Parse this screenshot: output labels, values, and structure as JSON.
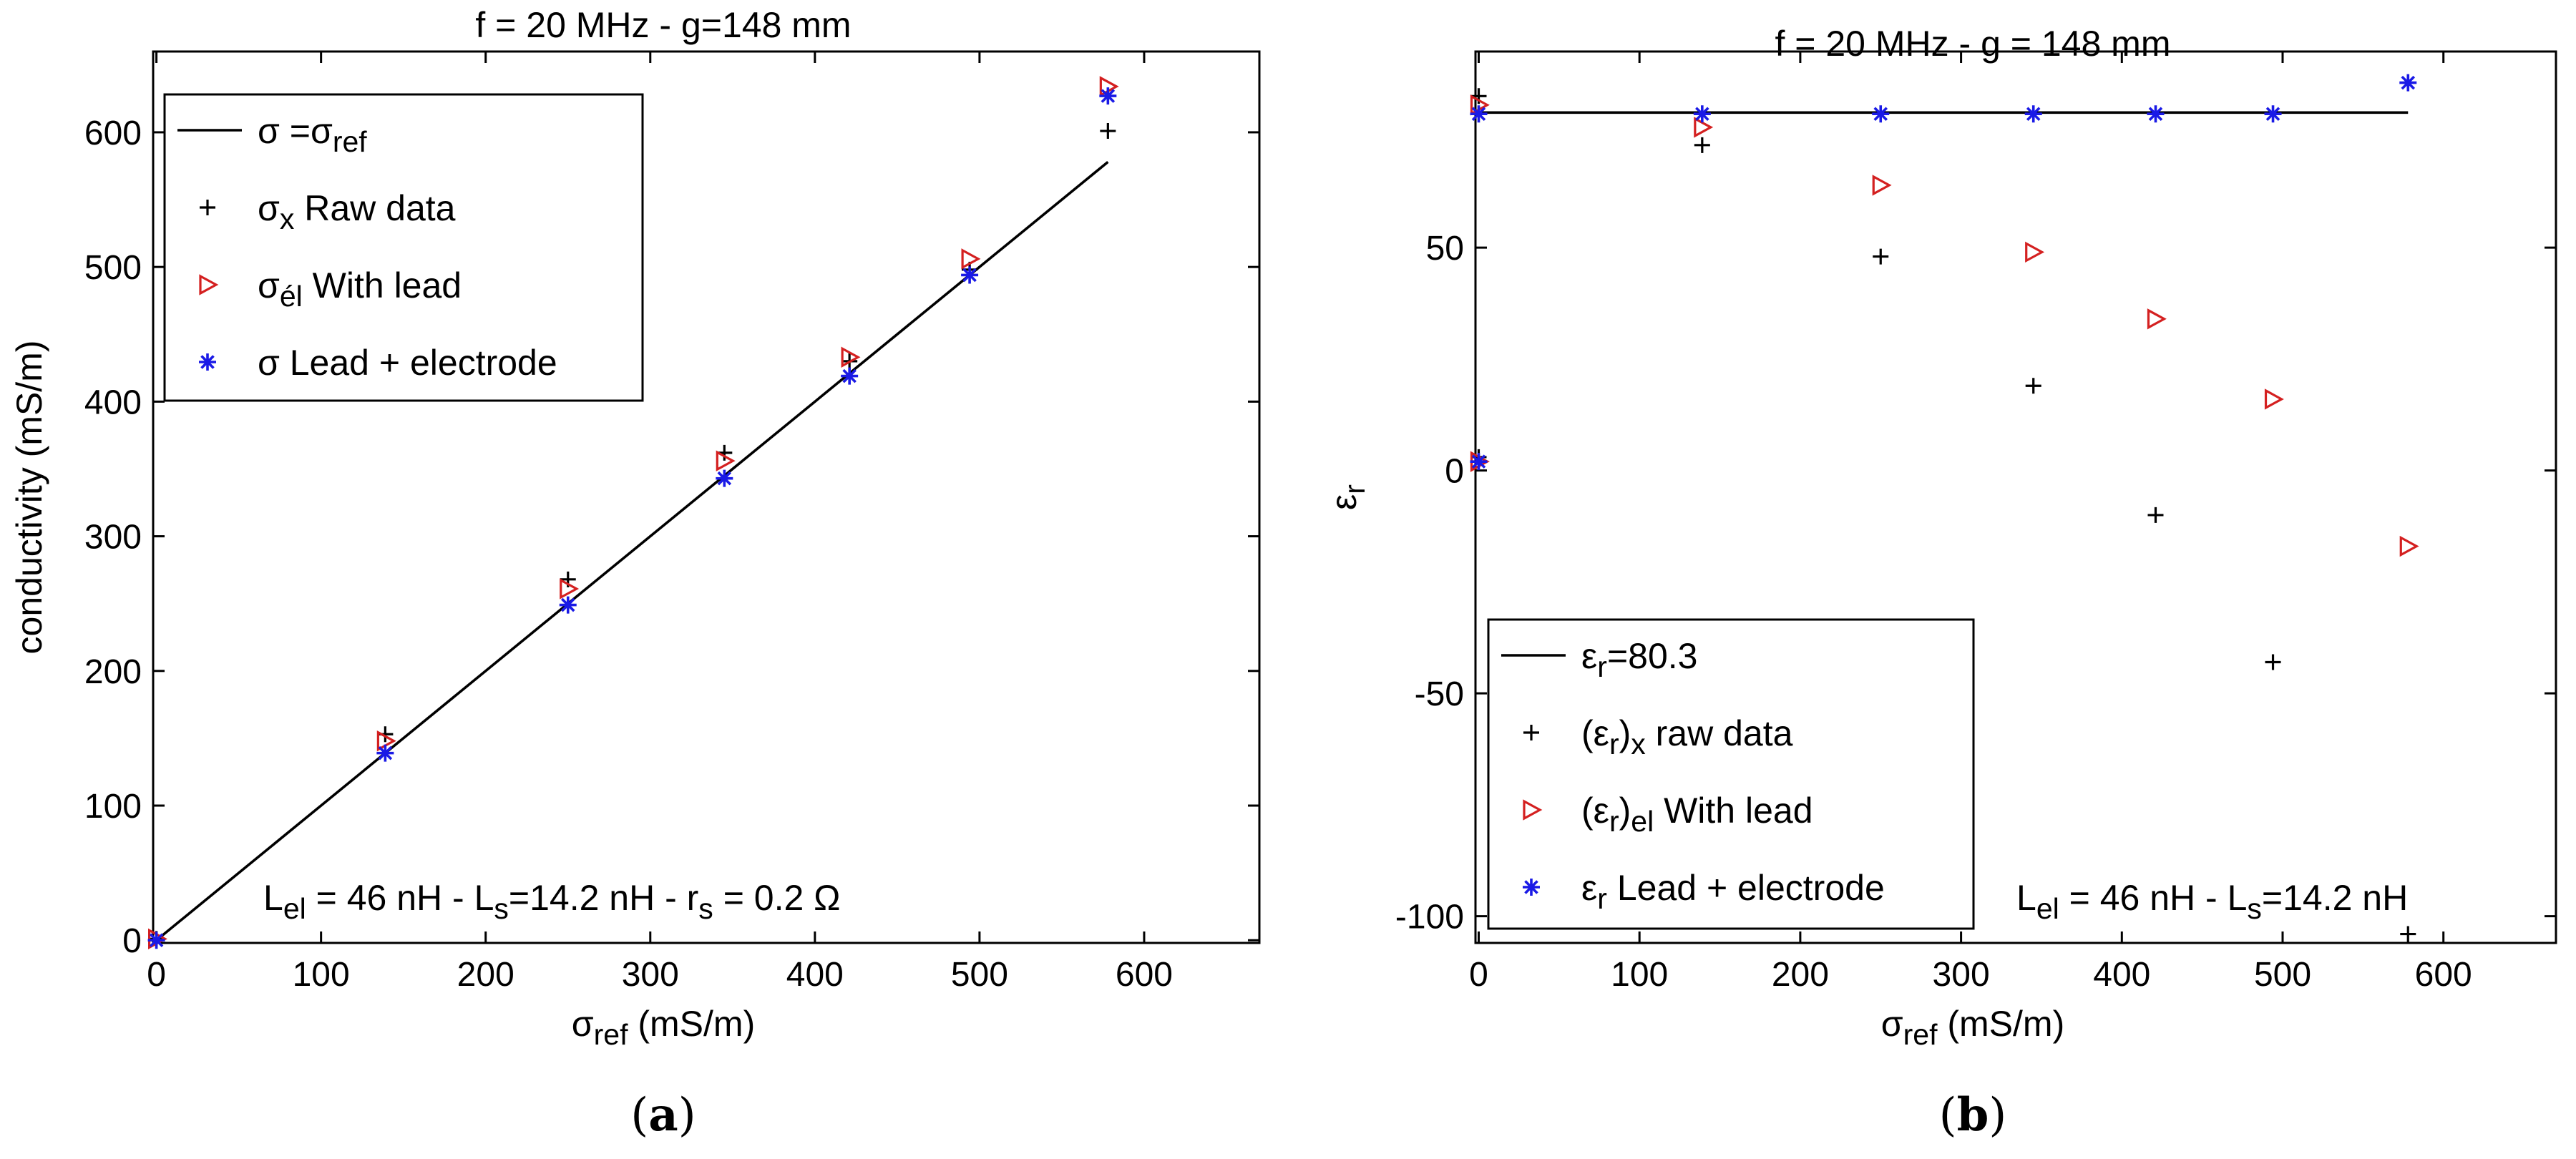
{
  "chart_data": [
    {
      "id": "a",
      "type": "scatter",
      "title": "f = 20 MHz - g=148 mm",
      "xlabel": {
        "base": "σ",
        "sub": "ref",
        "rest": " (mS/m)"
      },
      "ylabel": "conductivity (mS/m)",
      "xlim": [
        -2,
        670
      ],
      "ylim": [
        -2,
        660
      ],
      "xticks": [
        0,
        100,
        200,
        300,
        400,
        500,
        600
      ],
      "yticks": [
        0,
        100,
        200,
        300,
        400,
        500,
        600
      ],
      "legend_position": "top-left",
      "caption": {
        "open": "(",
        "letter": "a",
        "close": ")"
      },
      "annotation": {
        "parts": [
          {
            "t": "L",
            "s": ""
          },
          {
            "t": "",
            "s": "el"
          },
          {
            "t": " = 46 nH - L",
            "s": ""
          },
          {
            "t": "",
            "s": "s"
          },
          {
            "t": "=14.2 nH - r",
            "s": ""
          },
          {
            "t": "",
            "s": "s"
          },
          {
            "t": " = 0.2 Ω",
            "s": ""
          }
        ]
      },
      "series": [
        {
          "name": "ref_line",
          "marker": "line",
          "color": "#000000",
          "legend": {
            "base": "σ =σ",
            "sub": "ref",
            "rest": ""
          },
          "x": [
            0,
            578
          ],
          "y": [
            0,
            578
          ]
        },
        {
          "name": "raw",
          "marker": "plus",
          "color": "#000000",
          "legend": {
            "base": "σ",
            "sub": "x",
            "rest": " Raw data"
          },
          "x": [
            0,
            139,
            250,
            345,
            421,
            494,
            578
          ],
          "y": [
            1,
            153,
            268,
            362,
            430,
            498,
            601
          ]
        },
        {
          "name": "with_lead",
          "marker": "triangle-right",
          "color": "#d42020",
          "legend": {
            "base": "σ",
            "sub": "él",
            "rest": " With lead"
          },
          "x": [
            0,
            139,
            250,
            345,
            421,
            494,
            578
          ],
          "y": [
            1,
            148,
            261,
            356,
            433,
            506,
            634
          ]
        },
        {
          "name": "lead_electrode",
          "marker": "asterisk",
          "color": "#1a1ae6",
          "legend": {
            "base": "σ Lead + electrode",
            "sub": "",
            "rest": ""
          },
          "x": [
            0,
            139,
            250,
            345,
            421,
            494,
            578
          ],
          "y": [
            0,
            139,
            249,
            343,
            419,
            494,
            627
          ]
        }
      ]
    },
    {
      "id": "b",
      "type": "scatter",
      "title": "f = 20 MHz - g = 148 mm",
      "xlabel": {
        "base": "σ",
        "sub": "ref",
        "rest": " (mS/m)"
      },
      "ylabel": {
        "base": "ε",
        "sub": "r"
      },
      "xlim": [
        -2,
        670
      ],
      "ylim": [
        -106,
        94
      ],
      "xticks": [
        0,
        100,
        200,
        300,
        400,
        500,
        600
      ],
      "yticks": [
        -100,
        -50,
        0,
        50
      ],
      "legend_position": "bottom-left",
      "caption": {
        "open": "(",
        "letter": "b",
        "close": ")"
      },
      "annotation": {
        "parts": [
          {
            "t": "L",
            "s": ""
          },
          {
            "t": "",
            "s": "el"
          },
          {
            "t": " = 46 nH - L",
            "s": ""
          },
          {
            "t": "",
            "s": "s"
          },
          {
            "t": "=14.2 nH",
            "s": ""
          }
        ]
      },
      "series": [
        {
          "name": "ref_line",
          "marker": "line",
          "color": "#000000",
          "legend": {
            "base": "ε",
            "sub": "r",
            "rest": "=80.3"
          },
          "x": [
            0,
            578
          ],
          "y": [
            80.3,
            80.3
          ]
        },
        {
          "name": "raw",
          "marker": "plus",
          "color": "#000000",
          "legend": {
            "base": "(ε",
            "sub": "r",
            "rest": ")",
            "sub2": "x",
            "rest2": " raw data"
          },
          "x": [
            0,
            0,
            139,
            250,
            345,
            421,
            494,
            578
          ],
          "y": [
            84,
            3,
            73,
            48,
            19,
            -10,
            -43,
            -104
          ]
        },
        {
          "name": "with_lead",
          "marker": "triangle-right",
          "color": "#d42020",
          "legend": {
            "base": "(ε",
            "sub": "r",
            "rest": ")",
            "sub2": "el",
            "rest2": " With lead"
          },
          "x": [
            0,
            0,
            139,
            250,
            345,
            421,
            494,
            578
          ],
          "y": [
            82,
            2,
            77,
            64,
            49,
            34,
            16,
            -17
          ]
        },
        {
          "name": "lead_electrode",
          "marker": "asterisk",
          "color": "#1a1ae6",
          "legend": {
            "base": "ε",
            "sub": "r",
            "rest": " Lead + electrode"
          },
          "x": [
            0,
            0,
            139,
            250,
            345,
            421,
            494,
            578
          ],
          "y": [
            80,
            2,
            80,
            80,
            80,
            80,
            80,
            87
          ]
        }
      ]
    }
  ]
}
